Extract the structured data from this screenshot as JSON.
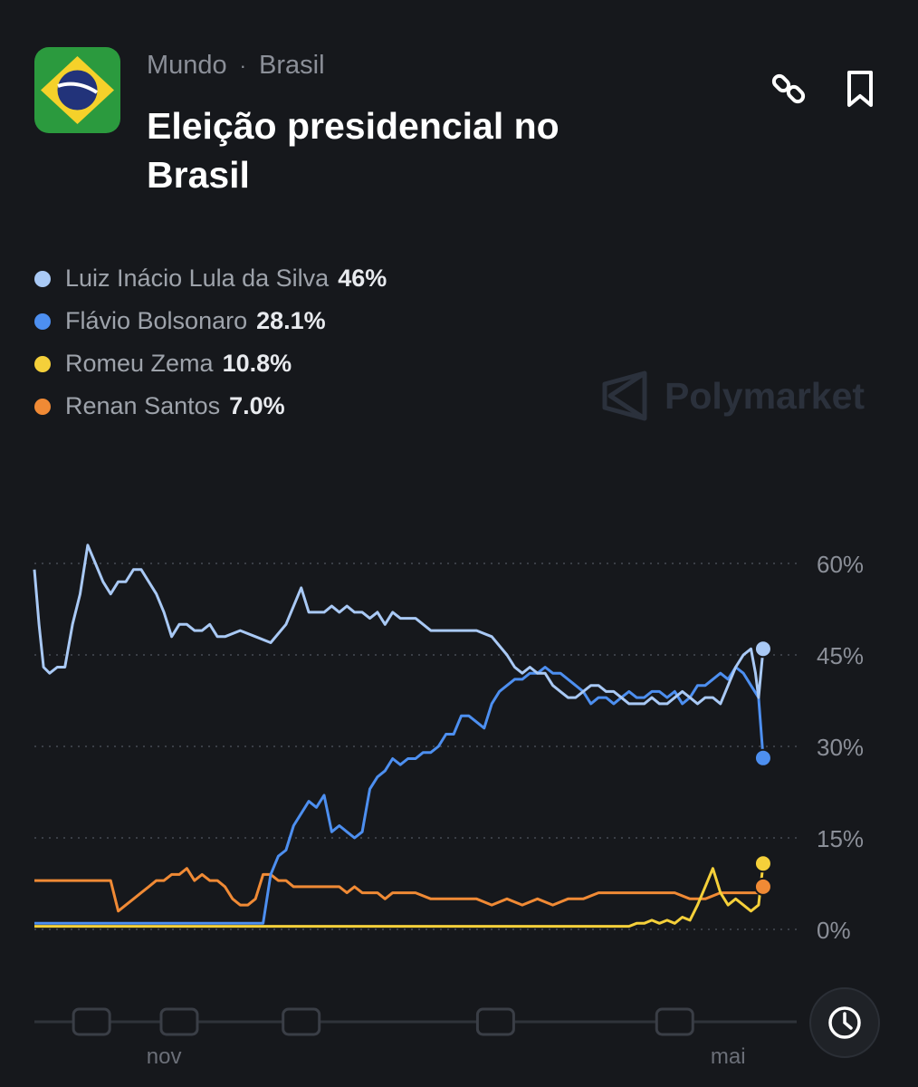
{
  "breadcrumb": {
    "category": "Mundo",
    "separator": "·",
    "subcategory": "Brasil"
  },
  "title": "Eleição presidencial no Brasil",
  "watermark": "Polymarket",
  "legend": [
    {
      "name": "Luiz Inácio Lula da Silva",
      "value": "46%",
      "color": "#a9c9f5"
    },
    {
      "name": "Flávio Bolsonaro",
      "value": "28.1%",
      "color": "#4d8ff0"
    },
    {
      "name": "Romeu Zema",
      "value": "10.8%",
      "color": "#f5d03a"
    },
    {
      "name": "Renan Santos",
      "value": "7.0%",
      "color": "#f08a35"
    }
  ],
  "icons": {
    "link": "link-icon",
    "bookmark": "bookmark-icon",
    "time_range": "clock-icon"
  },
  "chart_data": {
    "type": "line",
    "y_unit": "%",
    "ylim": [
      0,
      60
    ],
    "yticks": [
      {
        "v": 60,
        "label": "60%"
      },
      {
        "v": 45,
        "label": "45%"
      },
      {
        "v": 30,
        "label": "30%"
      },
      {
        "v": 15,
        "label": "15%"
      },
      {
        "v": 0,
        "label": "0%"
      }
    ],
    "x_domain": [
      0,
      100
    ],
    "xticks": [
      {
        "x": 17,
        "label": "nov"
      },
      {
        "x": 91,
        "label": "mai"
      }
    ],
    "grid": "dotted horizontal",
    "series": [
      {
        "name": "Luiz Inácio Lula da Silva",
        "color": "#a9c9f5",
        "end_value": 46,
        "x": [
          0,
          0.6,
          1.2,
          2,
          3,
          4,
          5,
          6,
          7,
          8,
          9,
          10,
          11,
          12,
          13,
          14,
          15,
          16,
          17,
          18,
          19,
          20,
          21,
          22,
          23,
          24,
          25,
          27,
          29,
          31,
          33,
          35,
          36,
          37,
          38,
          39,
          40,
          41,
          42,
          43,
          44,
          45,
          46,
          47,
          48,
          49,
          50,
          52,
          54,
          56,
          58,
          60,
          62,
          63,
          64,
          65,
          66,
          67,
          68,
          69,
          70,
          71,
          72,
          73,
          74,
          75,
          76,
          77,
          78,
          79,
          80,
          81,
          82,
          83,
          84,
          85,
          86,
          87,
          88,
          89,
          90,
          91,
          92,
          93,
          94,
          94.6,
          95,
          95.6
        ],
        "y": [
          59,
          50,
          43,
          42,
          43,
          43,
          50,
          55,
          63,
          60,
          57,
          55,
          57,
          57,
          59,
          59,
          57,
          55,
          52,
          48,
          50,
          50,
          49,
          49,
          50,
          48,
          48,
          49,
          48,
          47,
          50,
          56,
          52,
          52,
          52,
          53,
          52,
          53,
          52,
          52,
          51,
          52,
          50,
          52,
          51,
          51,
          51,
          49,
          49,
          49,
          49,
          48,
          45,
          43,
          42,
          43,
          42,
          42,
          40,
          39,
          38,
          38,
          39,
          40,
          40,
          39,
          39,
          38,
          37,
          37,
          37,
          38,
          37,
          37,
          38,
          39,
          38,
          37,
          38,
          38,
          37,
          40,
          43,
          45,
          46,
          42,
          38,
          46
        ]
      },
      {
        "name": "Flávio Bolsonaro",
        "color": "#4d8ff0",
        "end_value": 28.1,
        "x": [
          0,
          25,
          27,
          30,
          31,
          32,
          33,
          34,
          35,
          36,
          37,
          38,
          39,
          40,
          41,
          42,
          43,
          44,
          45,
          46,
          47,
          48,
          49,
          50,
          51,
          52,
          53,
          54,
          55,
          56,
          57,
          58,
          59,
          60,
          61,
          62,
          63,
          64,
          65,
          66,
          67,
          68,
          69,
          70,
          71,
          72,
          73,
          74,
          75,
          76,
          77,
          78,
          79,
          80,
          81,
          82,
          83,
          84,
          85,
          86,
          87,
          88,
          89,
          90,
          91,
          92,
          93,
          94,
          95,
          95.6
        ],
        "y": [
          1,
          1,
          1,
          1,
          9,
          12,
          13,
          17,
          19,
          21,
          20,
          22,
          16,
          17,
          16,
          15,
          16,
          23,
          25,
          26,
          28,
          27,
          28,
          28,
          29,
          29,
          30,
          32,
          32,
          35,
          35,
          34,
          33,
          37,
          39,
          40,
          41,
          41,
          42,
          42,
          43,
          42,
          42,
          41,
          40,
          39,
          37,
          38,
          38,
          37,
          38,
          39,
          38,
          38,
          39,
          39,
          38,
          39,
          37,
          38,
          40,
          40,
          41,
          42,
          41,
          43,
          42,
          40,
          38,
          28.1
        ]
      },
      {
        "name": "Romeu Zema",
        "color": "#f5d03a",
        "end_value": 10.8,
        "x": [
          0,
          78,
          79,
          80,
          81,
          82,
          83,
          84,
          85,
          86,
          87,
          88,
          89,
          90,
          91,
          92,
          93,
          94,
          95,
          95.6
        ],
        "y": [
          0.5,
          0.5,
          1,
          1,
          1.5,
          1,
          1.5,
          1,
          2,
          1.5,
          4,
          7,
          10,
          6,
          4,
          5,
          4,
          3,
          4,
          10.8
        ]
      },
      {
        "name": "Renan Santos",
        "color": "#f08a35",
        "end_value": 7.0,
        "x": [
          0,
          10,
          11,
          12,
          13,
          14,
          15,
          16,
          17,
          18,
          19,
          20,
          21,
          22,
          23,
          24,
          25,
          26,
          27,
          28,
          29,
          30,
          31,
          32,
          33,
          34,
          35,
          36,
          37,
          38,
          39,
          40,
          41,
          42,
          43,
          44,
          45,
          46,
          47,
          48,
          49,
          50,
          52,
          54,
          56,
          58,
          60,
          62,
          64,
          66,
          68,
          70,
          72,
          74,
          76,
          78,
          80,
          82,
          84,
          86,
          88,
          90,
          92,
          94,
          95,
          95.6
        ],
        "y": [
          8,
          8,
          3,
          4,
          5,
          6,
          7,
          8,
          8,
          9,
          9,
          10,
          8,
          9,
          8,
          8,
          7,
          5,
          4,
          4,
          5,
          9,
          9,
          8,
          8,
          7,
          7,
          7,
          7,
          7,
          7,
          7,
          6,
          7,
          6,
          6,
          6,
          5,
          6,
          6,
          6,
          6,
          5,
          5,
          5,
          5,
          4,
          5,
          4,
          5,
          4,
          5,
          5,
          6,
          6,
          6,
          6,
          6,
          6,
          5,
          5,
          6,
          6,
          6,
          6,
          7
        ]
      }
    ]
  }
}
